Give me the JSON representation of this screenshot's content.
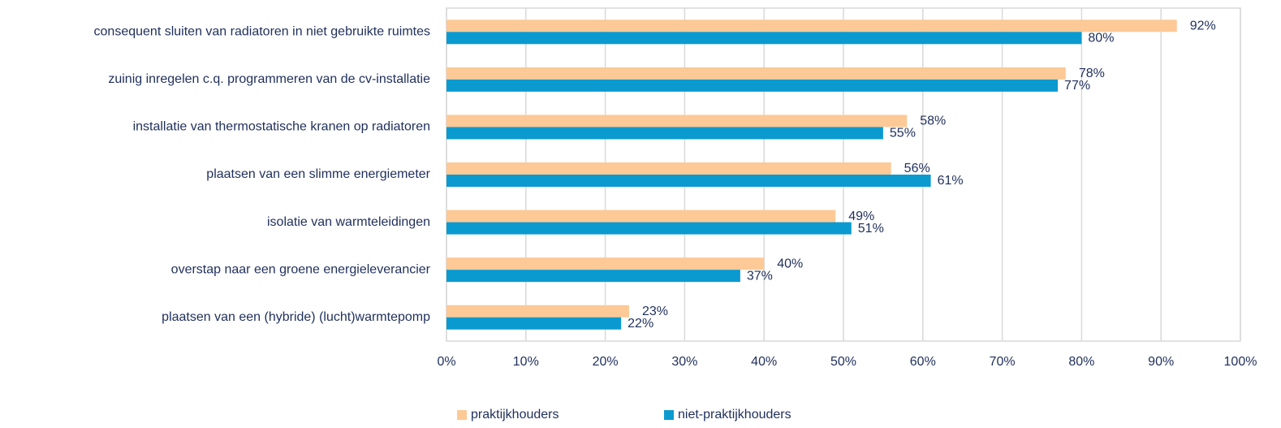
{
  "chart_data": {
    "type": "hbar",
    "categories": [
      "consequent sluiten van radiatoren in niet gebruikte ruimtes",
      "zuinig inregelen c.q. programmeren van de cv-installatie",
      "installatie van thermostatische kranen op radiatoren",
      "plaatsen van een slimme energiemeter",
      "isolatie van warmteleidingen",
      "overstap naar een groene energieleverancier",
      "plaatsen van een (hybride) (lucht)warmtepomp"
    ],
    "series": [
      {
        "name": "praktijkhouders",
        "color": "#fdc996",
        "values": [
          92,
          78,
          58,
          56,
          49,
          40,
          23
        ],
        "value_labels": [
          "92%",
          "78%",
          "58%",
          "56%",
          "49%",
          "40%",
          "23%"
        ]
      },
      {
        "name": "niet-praktijkhouders",
        "color": "#0b9ad0",
        "values": [
          80,
          77,
          55,
          61,
          51,
          37,
          22
        ],
        "value_labels": [
          "80%",
          "77%",
          "55%",
          "61%",
          "51%",
          "37%",
          "22%"
        ]
      }
    ],
    "xlim": [
      0,
      100
    ],
    "xticks": [
      {
        "value": 0,
        "label": "0%"
      },
      {
        "value": 10,
        "label": "10%"
      },
      {
        "value": 20,
        "label": "20%"
      },
      {
        "value": 30,
        "label": "30%"
      },
      {
        "value": 40,
        "label": "40%"
      },
      {
        "value": 50,
        "label": "50%"
      },
      {
        "value": 60,
        "label": "60%"
      },
      {
        "value": 70,
        "label": "70%"
      },
      {
        "value": 80,
        "label": "80%"
      },
      {
        "value": 90,
        "label": "90%"
      },
      {
        "value": 100,
        "label": "100%"
      }
    ],
    "grid": true,
    "legend": "bottom"
  }
}
